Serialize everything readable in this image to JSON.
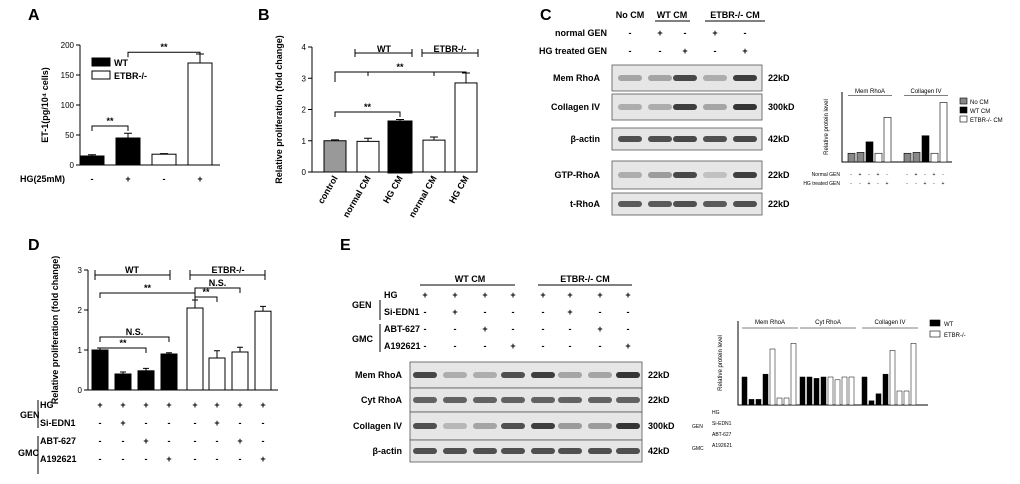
{
  "panels": {
    "A": {
      "label": "A"
    },
    "B": {
      "label": "B"
    },
    "C": {
      "label": "C"
    },
    "D": {
      "label": "D"
    },
    "E": {
      "label": "E"
    }
  },
  "blotC": {
    "headers": [
      "No CM",
      "WT CM",
      "ETBR-/- CM"
    ],
    "row_labels": [
      "normal GEN",
      "HG treated GEN"
    ],
    "normal_gen": [
      "-",
      "+",
      "-",
      "+",
      "-"
    ],
    "hg_gen": [
      "-",
      "-",
      "+",
      "-",
      "+"
    ],
    "bands": [
      "Mem RhoA",
      "Collagen IV",
      "β-actin",
      "GTP-RhoA",
      "t-RhoA"
    ],
    "sizes": [
      "22kD",
      "300kD",
      "42kD",
      "22kD",
      "22kD"
    ]
  },
  "blotE": {
    "headers": [
      "WT CM",
      "ETBR-/- CM"
    ],
    "group_labels": [
      "GEN",
      "GMC"
    ],
    "row_labels": [
      "HG",
      "Si-EDN1",
      "ABT-627",
      "A192621"
    ],
    "hg": [
      "+",
      "+",
      "+",
      "+",
      "+",
      "+",
      "+",
      "+"
    ],
    "si": [
      "-",
      "+",
      "-",
      "-",
      "-",
      "+",
      "-",
      "-"
    ],
    "abt": [
      "-",
      "-",
      "+",
      "-",
      "-",
      "-",
      "+",
      "-"
    ],
    "a19": [
      "-",
      "-",
      "-",
      "+",
      "-",
      "-",
      "-",
      "+"
    ],
    "bands": [
      "Mem RhoA",
      "Cyt RhoA",
      "Collagen IV",
      "β-actin"
    ],
    "sizes": [
      "22kD",
      "22kD",
      "300kD",
      "42kD"
    ]
  },
  "chart_data": [
    {
      "panel": "A",
      "type": "bar",
      "ylabel": "ET-1(pg/10⁴ cells)",
      "xlabel": "HG(25mM)",
      "categories": [
        "-",
        "+",
        "-",
        "+"
      ],
      "series": [
        {
          "name": "WT",
          "values": [
            15,
            45,
            null,
            null
          ],
          "errors": [
            2,
            8,
            null,
            null
          ],
          "color": "#000000"
        },
        {
          "name": "ETBR-/-",
          "values": [
            null,
            null,
            18,
            170
          ],
          "errors": [
            null,
            null,
            1,
            15
          ],
          "color": "#ffffff"
        }
      ],
      "ylim": [
        0,
        200
      ],
      "yticks": [
        "0",
        "50",
        "100",
        "150",
        "200"
      ],
      "significance": [
        "**",
        "**"
      ]
    },
    {
      "panel": "B",
      "type": "bar",
      "ylabel": "Relative proliferation (fold change)",
      "categories": [
        "control",
        "normal CM",
        "HG CM",
        "normal CM",
        "HG CM"
      ],
      "groups": [
        "WT",
        "ETBR-/-"
      ],
      "values": [
        1.0,
        0.98,
        1.6,
        1.02,
        2.85
      ],
      "errors": [
        0.03,
        0.1,
        0.08,
        0.1,
        0.32
      ],
      "ylim": [
        0,
        4
      ],
      "yticks": [
        "0",
        "1",
        "2",
        "3",
        "4"
      ],
      "significance": [
        "**",
        "**"
      ]
    },
    {
      "panel": "C",
      "type": "bar",
      "ylabel": "Relative protein level",
      "groups": [
        "Mem RhoA",
        "Collagen IV"
      ],
      "legend": [
        "No CM",
        "WT CM",
        "ETBR-/- CM"
      ],
      "row_labels": [
        "Normal GEN",
        "HG treated GEN"
      ],
      "values": [
        [
          1.0,
          1.1,
          2.3,
          1.0,
          5.1
        ],
        [
          1.0,
          1.1,
          3.0,
          1.0,
          6.8
        ]
      ],
      "ylim": [
        0,
        8
      ]
    },
    {
      "panel": "D",
      "type": "bar",
      "ylabel": "Relative proliferation (fold change)",
      "groups": [
        "WT",
        "ETBR-/-"
      ],
      "row_labels": [
        "HG",
        "Si-EDN1",
        "ABT-627",
        "A192621"
      ],
      "group_labels": [
        "GEN",
        "GMC"
      ],
      "values": [
        1.0,
        0.4,
        0.48,
        0.9,
        2.05,
        0.8,
        0.95,
        1.97
      ],
      "errors": [
        0.05,
        0.05,
        0.06,
        0.03,
        0.2,
        0.18,
        0.12,
        0.12
      ],
      "ylim": [
        0,
        3
      ],
      "yticks": [
        "0",
        "1",
        "2",
        "3"
      ],
      "significance": [
        "**",
        "**",
        "**",
        "N.S.",
        "N.S."
      ]
    },
    {
      "panel": "E",
      "type": "bar",
      "ylabel": "Relative protein level",
      "groups": [
        "Mem RhoA",
        "Cyt RhoA",
        "Collagen IV"
      ],
      "legend": [
        "WT",
        "ETBR-/-"
      ],
      "values": [
        [
          1.0,
          0.2,
          0.2,
          1.1,
          2.0,
          0.25,
          0.25,
          2.2
        ],
        [
          1.0,
          1.0,
          0.95,
          1.0,
          1.0,
          0.9,
          1.0,
          1.0
        ],
        [
          1.0,
          0.15,
          0.4,
          1.1,
          1.95,
          0.5,
          0.5,
          2.2
        ]
      ],
      "ylim": [
        0,
        3
      ]
    }
  ]
}
